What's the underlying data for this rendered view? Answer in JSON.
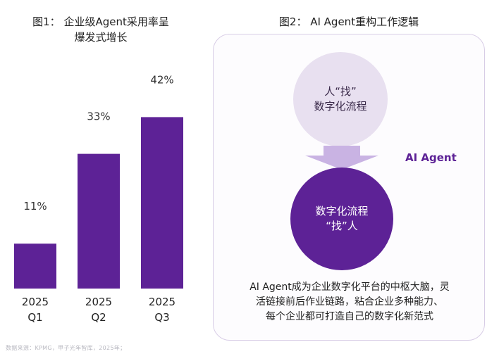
{
  "figure1": {
    "title_line1": "图1： 企业级Agent采用率呈",
    "title_line2": "爆发式增长"
  },
  "chart_data": {
    "type": "bar",
    "title": "图1： 企业级Agent采用率呈爆发式增长",
    "categories": [
      [
        "2025",
        "Q1"
      ],
      [
        "2025",
        "Q2"
      ],
      [
        "2025",
        "Q3"
      ]
    ],
    "values": [
      11,
      33,
      42
    ],
    "value_labels": [
      "11%",
      "33%",
      "42%"
    ],
    "unit": "%",
    "ylim": [
      0,
      50
    ],
    "grid": false,
    "legend": "none",
    "bar_color": "#5d2296"
  },
  "figure2": {
    "title": "图2： AI Agent重构工作逻辑",
    "top_circle": {
      "line1": "人“找”",
      "line2": "数字化流程"
    },
    "arrow_label": "AI Agent",
    "bottom_circle": {
      "line1": "数字化流程",
      "line2": "“找”人"
    },
    "caption": {
      "line1": "AI Agent成为企业数字化平台的中枢大脑，灵",
      "line2": "活链接前后作业链路，粘合企业多种能力、",
      "line3": "每个企业都可打造自己的数字化新范式"
    }
  },
  "source_note": "数据来源：KPMG，甲子光年智库，2025年；",
  "colors": {
    "accent": "#5d2296",
    "light_accent": "#e8e0f0",
    "arrow": "#c9b3e3",
    "panel_border": "#d8cde6"
  }
}
